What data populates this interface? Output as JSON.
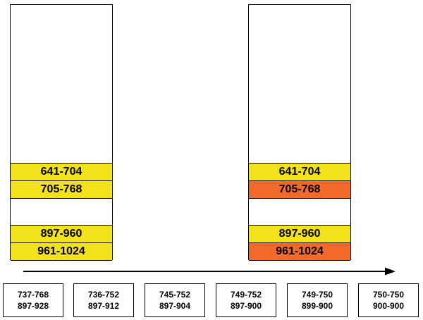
{
  "colors": {
    "yellow": "#f2e21c",
    "orange": "#f26a2a",
    "line": "#000000"
  },
  "left_column": {
    "segments": [
      {
        "label": "641-704",
        "color": "yellow"
      },
      {
        "label": "705-768",
        "color": "yellow"
      },
      {
        "label": "897-960",
        "color": "yellow"
      },
      {
        "label": "961-1024",
        "color": "yellow"
      }
    ]
  },
  "right_column": {
    "segments": [
      {
        "label": "641-704",
        "color": "yellow"
      },
      {
        "label": "705-768",
        "color": "orange"
      },
      {
        "label": "897-960",
        "color": "yellow"
      },
      {
        "label": "961-1024",
        "color": "orange"
      }
    ]
  },
  "steps": [
    {
      "line1": "737-768",
      "line2": "897-928"
    },
    {
      "line1": "736-752",
      "line2": "897-912"
    },
    {
      "line1": "745-752",
      "line2": "897-904"
    },
    {
      "line1": "749-752",
      "line2": "897-900"
    },
    {
      "line1": "749-750",
      "line2": "899-900"
    },
    {
      "line1": "750-750",
      "line2": "900-900"
    }
  ]
}
